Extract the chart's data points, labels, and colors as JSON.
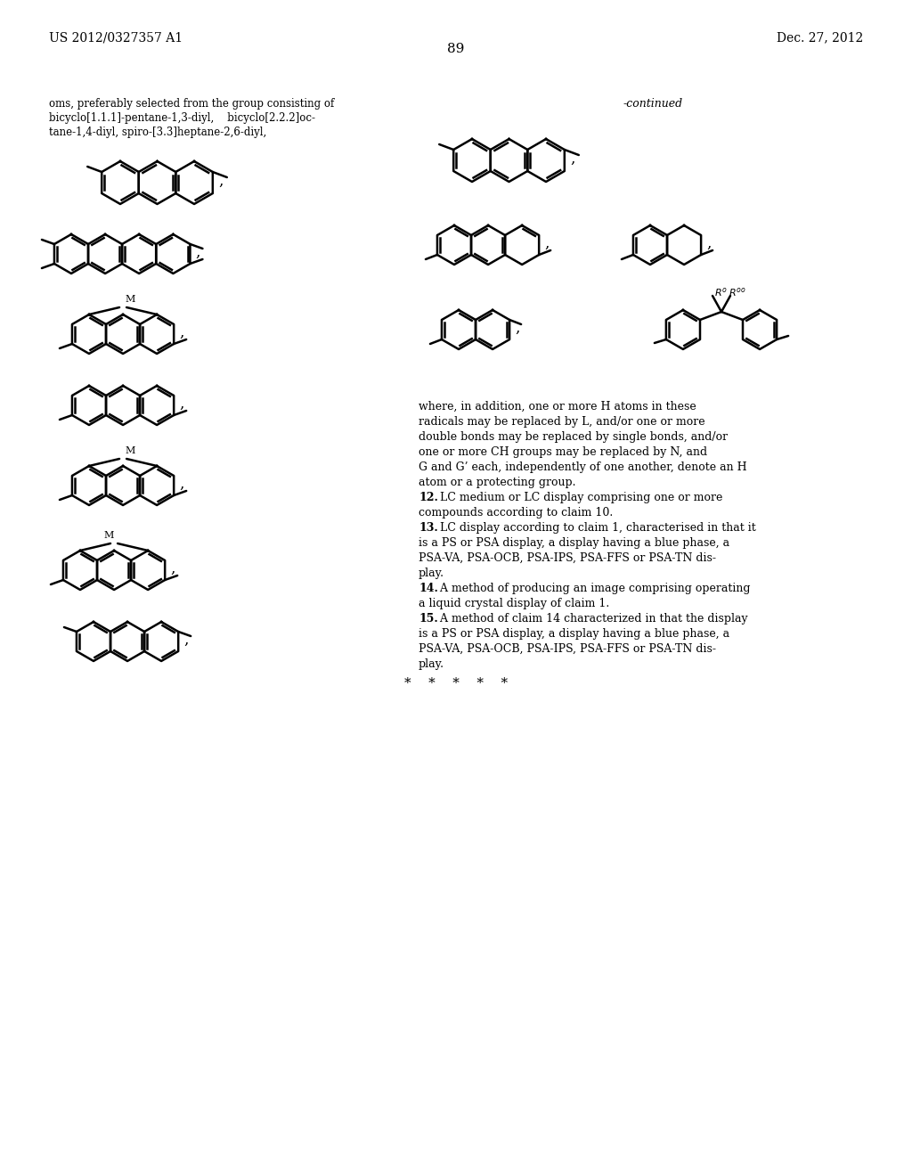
{
  "page_number": "89",
  "header_left": "US 2012/0327357 A1",
  "header_right": "Dec. 27, 2012",
  "bg_color": "#ffffff",
  "text_color": "#000000",
  "left_text_lines": [
    "oms, preferably selected from the group consisting of",
    "bicyclo[1.1.1]-pentane-1,3-diyl,    bicyclo[2.2.2]oc-",
    "tane-1,4-diyl, spiro-[3.3]heptane-2,6-diyl,"
  ],
  "continued_label": "-continued",
  "body_text": [
    "where, in addition, one or more H atoms in these",
    "radicals may be replaced by L, and/or one or more",
    "double bonds may be replaced by single bonds, and/or",
    "one or more CH groups may be replaced by N, and",
    "G and G’ each, independently of one another, denote an H",
    "atom or a protecting group.",
    "    12. LC medium or LC display comprising one or more",
    "compounds according to claim 10.",
    "    13. LC display according to claim 1, characterised in that it",
    "is a PS or PSA display, a display having a blue phase, a",
    "PSA-VA, PSA-OCB, PSA-IPS, PSA-FFS or PSA-TN dis-",
    "play.",
    "    14. A method of producing an image comprising operating",
    "a liquid crystal display of claim 1.",
    "    15. A method of claim 14 characterized in that the display",
    "is a PS or PSA display, a display having a blue phase, a",
    "PSA-VA, PSA-OCB, PSA-IPS, PSA-FFS or PSA-TN dis-",
    "play."
  ],
  "stars_line": "*    *    *    *    *"
}
